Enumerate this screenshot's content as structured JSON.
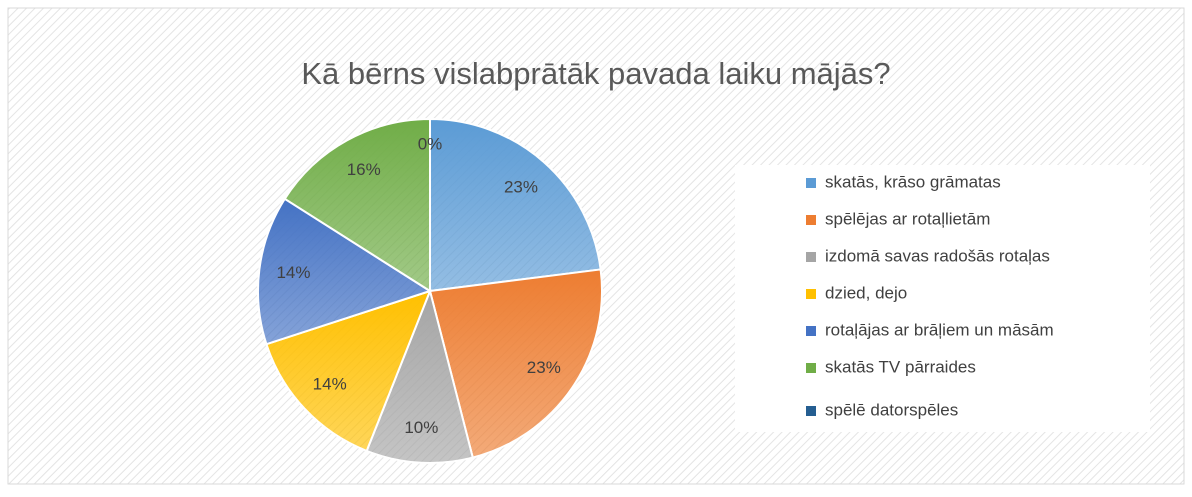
{
  "chart_data": {
    "type": "pie",
    "title": "Kā bērns vislabprātāk pavada laiku mājās?",
    "categories": [
      "skatās, krāso grāmatas",
      "spēlējas ar rotaļlietām",
      "izdomā savas radošās rotaļas",
      "dzied, dejo",
      "rotaļājas ar brāļiem un māsām",
      "skatās TV pārraides",
      "spēlē datorspēles"
    ],
    "values": [
      23,
      23,
      10,
      14,
      14,
      16,
      0
    ],
    "value_labels": [
      "23%",
      "23%",
      "10%",
      "14%",
      "14%",
      "16%",
      "0%"
    ],
    "colors": [
      "#5b9bd5",
      "#ed7d31",
      "#a5a5a5",
      "#ffc000",
      "#4472c4",
      "#70ad47",
      "#255e91"
    ],
    "legend": "right"
  }
}
